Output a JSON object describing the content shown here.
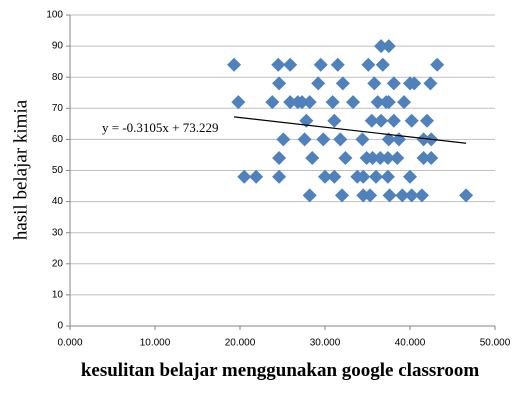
{
  "chart_data": {
    "type": "scatter",
    "x_label": "kesulitan belajar menggunakan google classroom",
    "y_label": "hasil belajar kimia",
    "color": "#4f81bd",
    "grid": true,
    "xlim": [
      0,
      50
    ],
    "ylim": [
      0,
      100
    ],
    "xticks": [
      {
        "value": 0,
        "label": "0.000"
      },
      {
        "value": 10,
        "label": "10.000"
      },
      {
        "value": 20,
        "label": "20.000"
      },
      {
        "value": 30,
        "label": "30.000"
      },
      {
        "value": 40,
        "label": "40.000"
      },
      {
        "value": 50,
        "label": "50.000"
      }
    ],
    "yticks": [
      0,
      10,
      20,
      30,
      40,
      50,
      60,
      70,
      80,
      90,
      100
    ],
    "trendline": {
      "slope": -0.3105,
      "intercept": 73.229,
      "label": "y = -0.3105x + 73.229"
    },
    "x": [
      19.3,
      19.8,
      20.5,
      21.9,
      23.8,
      24.5,
      25.9,
      24.6,
      25.1,
      24.6,
      24.6,
      25.9,
      26.8,
      27.3,
      28.2,
      27.8,
      27.6,
      28.5,
      28.2,
      29.2,
      29.5,
      29.8,
      30.0,
      31.1,
      31.1,
      30.9,
      31.5,
      32.1,
      31.8,
      32.4,
      32.0,
      33.3,
      33.8,
      34.4,
      34.5,
      35.1,
      34.9,
      34.5,
      35.3,
      35.5,
      35.6,
      36.0,
      36.5,
      35.8,
      36.2,
      36.6,
      37.5,
      36.8,
      37.2,
      36.6,
      37.5,
      37.5,
      37.4,
      37.6,
      37.4,
      38.1,
      38.5,
      38.7,
      39.1,
      39.3,
      40.0,
      40.5,
      40.2,
      40.0,
      40.2,
      41.6,
      42.0,
      41.6,
      42.5,
      42.5,
      42.4,
      43.2,
      41.4,
      46.6,
      38.1
    ],
    "values": [
      84,
      72,
      48,
      48,
      72,
      84,
      84,
      78,
      60,
      54,
      48,
      72,
      72,
      72,
      72,
      66,
      60,
      54,
      42,
      78,
      84,
      60,
      48,
      48,
      66,
      72,
      84,
      78,
      60,
      54,
      42,
      72,
      48,
      60,
      48,
      84,
      54,
      42,
      42,
      66,
      54,
      48,
      54,
      78,
      72,
      90,
      90,
      84,
      72,
      66,
      72,
      60,
      48,
      42,
      54,
      66,
      54,
      60,
      42,
      72,
      78,
      78,
      66,
      48,
      42,
      60,
      66,
      54,
      54,
      60,
      78,
      84,
      42,
      42,
      78
    ]
  }
}
